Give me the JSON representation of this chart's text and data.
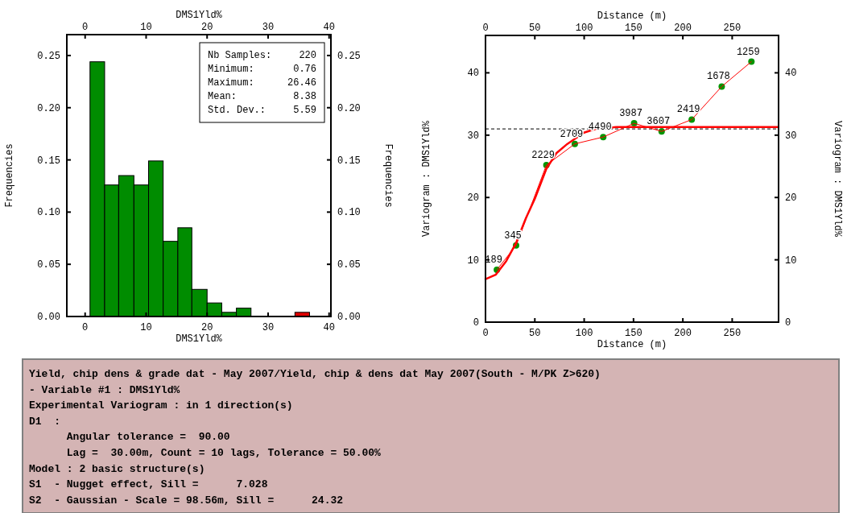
{
  "chart_data": [
    {
      "type": "histogram",
      "xlabel": "DMS1Yld%",
      "x2label": "DMS1Yld%",
      "ylabel": "Frequencies",
      "y2label": "Frequencies",
      "bins": [
        0.8,
        3.2,
        5.5,
        8.0,
        10.4,
        12.8,
        15.2,
        17.5,
        20.0,
        22.4,
        24.8,
        27.2,
        34.4,
        36.8
      ],
      "values": [
        0.244,
        0.126,
        0.135,
        0.126,
        0.149,
        0.072,
        0.085,
        0.026,
        0.013,
        0.004,
        0.008,
        0,
        0.004
      ],
      "colors": [
        "#008c00",
        "#008c00",
        "#008c00",
        "#008c00",
        "#008c00",
        "#008c00",
        "#008c00",
        "#008c00",
        "#008c00",
        "#008c00",
        "#008c00",
        "#008c00",
        "#e00000"
      ],
      "xlim": [
        -3,
        40.3
      ],
      "xticks": [
        0,
        10,
        20,
        30,
        40
      ],
      "x2lim": [
        -3,
        40.3
      ],
      "x2ticks": [
        0,
        10,
        20,
        30,
        40
      ],
      "ylim": [
        0,
        0.27
      ],
      "yticks": [
        {
          "value": 0,
          "label": "0.00"
        },
        {
          "value": 0.05,
          "label": "0.05"
        },
        {
          "value": 0.1,
          "label": "0.10"
        },
        {
          "value": 0.15,
          "label": "0.15"
        },
        {
          "value": 0.2,
          "label": "0.20"
        },
        {
          "value": 0.25,
          "label": "0.25"
        }
      ],
      "y2lim": [
        0,
        0.27
      ],
      "y2ticks": [
        {
          "value": 0,
          "label": "0.00"
        },
        {
          "value": 0.05,
          "label": "0.05"
        },
        {
          "value": 0.1,
          "label": "0.10"
        },
        {
          "value": 0.15,
          "label": "0.15"
        },
        {
          "value": 0.2,
          "label": "0.20"
        },
        {
          "value": 0.25,
          "label": "0.25"
        }
      ],
      "annotations": [
        "Nb Samples: 220",
        "Minimum: 0.76",
        "Maximum: 26.46",
        "Mean: 8.38",
        "Std. Dev.: 5.59"
      ]
    },
    {
      "type": "line",
      "xlabel": "Distance (m)",
      "x2label": "Distance (m)",
      "ylabel": "Variogram : DMS1Yld%",
      "y2label": "Variogram : DMS1Yld%",
      "series": [
        {
          "type": "line",
          "color": "#ff0000",
          "marker": "none",
          "x": [
            0,
            10.3,
            21,
            31,
            41,
            50,
            61.7,
            71.8,
            83,
            99.7,
            113.7,
            133,
            296.6
          ],
          "values": [
            6.9,
            7.6,
            9.8,
            12.7,
            16.7,
            19.8,
            24.6,
            27.1,
            28.6,
            30.4,
            31.1,
            31.3,
            31.3
          ]
        },
        {
          "type": "line",
          "color": "#ff0000",
          "marker": "none",
          "x": [
            11.5,
            31,
            61.7,
            90.5,
            119.3,
            150.6,
            178.5,
            209,
            239.4,
            269.5
          ],
          "values": [
            8.4,
            12.3,
            25.2,
            28.6,
            29.7,
            31.9,
            30.6,
            32.5,
            37.8,
            41.8
          ]
        },
        {
          "type": "scatter",
          "color": "#009600",
          "marker": "circle",
          "x": [
            11.5,
            31,
            61.7,
            90.5,
            119.3,
            150.6,
            178.5,
            209,
            239.4,
            269.5
          ],
          "values": [
            8.4,
            12.3,
            25.2,
            28.6,
            29.7,
            31.9,
            30.6,
            32.5,
            37.8,
            41.8
          ]
        }
      ],
      "annotations": [
        {
          "text": "189",
          "x": 11.5,
          "y": 8.4
        },
        {
          "text": "345",
          "x": 31,
          "y": 12.3
        },
        {
          "text": "2229",
          "x": 61.7,
          "y": 25.2
        },
        {
          "text": "2709",
          "x": 90.5,
          "y": 28.6
        },
        {
          "text": "4490",
          "x": 119.3,
          "y": 29.7
        },
        {
          "text": "3987",
          "x": 150.6,
          "y": 31.9
        },
        {
          "text": "3607",
          "x": 178.5,
          "y": 30.6
        },
        {
          "text": "2419",
          "x": 209,
          "y": 32.5
        },
        {
          "text": "1678",
          "x": 239.4,
          "y": 37.8
        },
        {
          "text": "1259",
          "x": 269.5,
          "y": 41.8
        }
      ],
      "xlim": [
        0,
        297
      ],
      "xticks": [
        0,
        50,
        100,
        150,
        200,
        250
      ],
      "x2lim": [
        0,
        297
      ],
      "x2ticks": [
        0,
        50,
        100,
        150,
        200,
        250
      ],
      "ylim": [
        0,
        46
      ],
      "yticks": [
        0,
        10,
        20,
        30,
        40
      ],
      "y2lim": [
        0,
        46
      ],
      "y2ticks": [
        0,
        10,
        20,
        30,
        40
      ],
      "ref_lines": [
        {
          "axis": "y",
          "value": 31.0,
          "color": "#000000",
          "line_style": "dashed"
        }
      ]
    },
    {
      "type": "other",
      "annotations": [
        "Yield, chip dens & grade dat - May 2007/Yield, chip & dens dat May 2007(South - M/PK Z>620)",
        "- Variable #1 : DMS1Yld%",
        "Experimental Variogram : in 1 direction(s)",
        "D1  :",
        "      Angular tolerance =  90.00",
        "      Lag =  30.00m, Count = 10 lags, Tolerance = 50.00%",
        "Model : 2 basic structure(s)",
        "S1  - Nugget effect, Sill =      7.028",
        "S2  - Gaussian - Scale = 98.56m, Sill =      24.32"
      ]
    }
  ]
}
